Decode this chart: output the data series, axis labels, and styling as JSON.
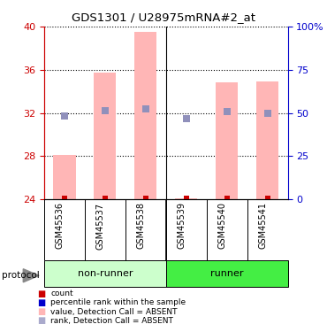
{
  "title": "GDS1301 / U28975mRNA#2_at",
  "samples": [
    "GSM45536",
    "GSM45537",
    "GSM45538",
    "GSM45539",
    "GSM45540",
    "GSM45541"
  ],
  "ylim_left": [
    24,
    40
  ],
  "ylim_right": [
    0,
    100
  ],
  "yticks_left": [
    24,
    28,
    32,
    36,
    40
  ],
  "yticks_right": [
    0,
    25,
    50,
    75,
    100
  ],
  "ytick_labels_right": [
    "0",
    "25",
    "50",
    "75",
    "100%"
  ],
  "bar_values": [
    28.1,
    35.7,
    39.5,
    24.1,
    34.8,
    34.9
  ],
  "bar_color": "#FFB6B6",
  "bar_bottom": 24,
  "rank_values": [
    31.7,
    32.2,
    32.4,
    31.5,
    32.1,
    32.0
  ],
  "rank_color": "#9090BB",
  "dot_size": 40,
  "count_dot_values": [
    24.05,
    24.05,
    24.05,
    24.05,
    24.05,
    24.05
  ],
  "count_dot_color": "#CC0000",
  "count_dot_size": 15,
  "bar_width": 0.55,
  "left_axis_color": "#CC0000",
  "right_axis_color": "#0000CC",
  "nonrunner_color": "#CCFFCC",
  "runner_color": "#44EE44",
  "label_bg_color": "#DDDDDD",
  "legend_colors": [
    "#CC0000",
    "#0000CC",
    "#FFB6B6",
    "#AAAACC"
  ],
  "legend_labels": [
    "count",
    "percentile rank within the sample",
    "value, Detection Call = ABSENT",
    "rank, Detection Call = ABSENT"
  ]
}
